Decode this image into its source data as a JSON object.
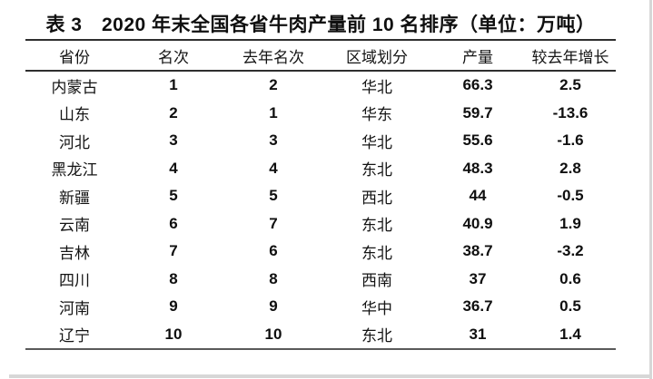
{
  "title": {
    "text": "表 3　2020 年末全国各省牛肉产量前 10 名排序（单位：万吨）"
  },
  "table": {
    "columns": [
      "省份",
      "名次",
      "去年名次",
      "区域划分",
      "产量",
      "较去年增长"
    ],
    "rows": [
      [
        "内蒙古",
        "1",
        "2",
        "华北",
        "66.3",
        "2.5"
      ],
      [
        "山东",
        "2",
        "1",
        "华东",
        "59.7",
        "-13.6"
      ],
      [
        "河北",
        "3",
        "3",
        "华北",
        "55.6",
        "-1.6"
      ],
      [
        "黑龙江",
        "4",
        "4",
        "东北",
        "48.3",
        "2.8"
      ],
      [
        "新疆",
        "5",
        "5",
        "西北",
        "44",
        "-0.5"
      ],
      [
        "云南",
        "6",
        "7",
        "东北",
        "40.9",
        "1.9"
      ],
      [
        "吉林",
        "7",
        "6",
        "东北",
        "38.7",
        "-3.2"
      ],
      [
        "四川",
        "8",
        "8",
        "西南",
        "37",
        "0.6"
      ],
      [
        "河南",
        "9",
        "9",
        "华中",
        "36.7",
        "0.5"
      ],
      [
        "辽宁",
        "10",
        "10",
        "东北",
        "31",
        "1.4"
      ]
    ]
  },
  "colors": {
    "rule_dark": "#2e2e2e",
    "rule_bottom": "#5a5a5a",
    "frame_border": "#d7d7d7",
    "text": "#111111"
  }
}
